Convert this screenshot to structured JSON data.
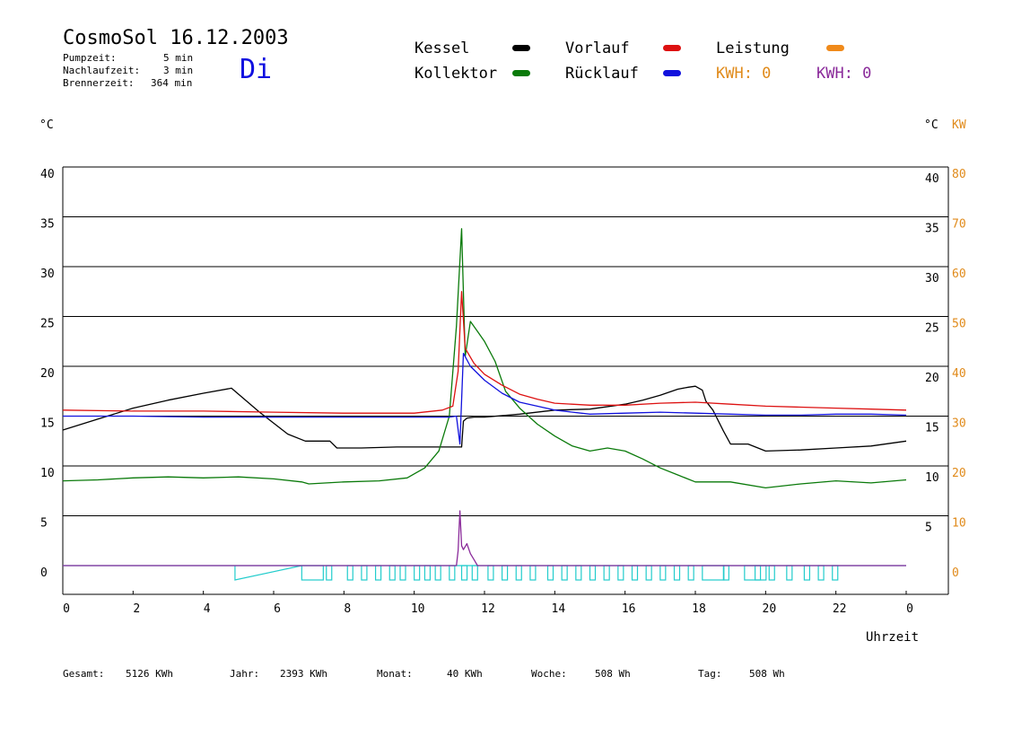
{
  "header": {
    "title": "CosmoSol 16.12.2003",
    "day": "Di",
    "pump_label": "Pumpzeit:",
    "pump_value": "5 min",
    "nachlauf_label": "Nachlaufzeit:",
    "nachlauf_value": "3 min",
    "brenner_label": "Brennerzeit:",
    "brenner_value": "364 min"
  },
  "legend": {
    "kessel": "Kessel",
    "kollektor": "Kollektor",
    "vorlauf": "Vorlauf",
    "ruecklauf": "Rücklauf",
    "leistung": "Leistung",
    "kwh1": "KWH: 0",
    "kwh2": "KWH: 0"
  },
  "axes": {
    "left_unit": "°C",
    "right_unit": "°C",
    "right_unit2": "KW",
    "xlabel": "Uhrzeit"
  },
  "footer": {
    "gesamt_label": "Gesamt:",
    "gesamt_value": "5126 KWh",
    "jahr_label": "Jahr:",
    "jahr_value": "2393 KWh",
    "monat_label": "Monat:",
    "monat_value": "40 KWh",
    "woche_label": "Woche:",
    "woche_value": "508 Wh",
    "tag_label": "Tag:",
    "tag_value": "508 Wh"
  },
  "colors": {
    "kessel": "#000000",
    "kollektor": "#0a7a0a",
    "vorlauf": "#dd1111",
    "ruecklauf": "#1111dd",
    "leistung": "#f08a1a",
    "pump": "#22cccc",
    "kwh2": "#8a2a9a"
  },
  "chart_data": {
    "type": "line",
    "xlabel": "Uhrzeit",
    "ylabel": "°C",
    "xlim": [
      0,
      24
    ],
    "ylim": [
      0,
      40
    ],
    "y2lim": [
      0,
      80
    ],
    "x_ticks": [
      "0",
      "2",
      "4",
      "6",
      "8",
      "10",
      "12",
      "14",
      "16",
      "18",
      "20",
      "22",
      "0"
    ],
    "y_ticks": [
      "0",
      "5",
      "10",
      "15",
      "20",
      "25",
      "30",
      "35",
      "40"
    ],
    "y_ticks_right": [
      "5",
      "10",
      "15",
      "20",
      "25",
      "30",
      "35",
      "40"
    ],
    "y2_ticks": [
      "0",
      "10",
      "20",
      "30",
      "40",
      "50",
      "60",
      "70",
      "80"
    ],
    "grid": true,
    "series": [
      {
        "name": "Kessel",
        "color": "#000000",
        "x": [
          0,
          1,
          2,
          3,
          4,
          4.8,
          5.6,
          6.4,
          6.9,
          7.0,
          7.6,
          7.8,
          8.5,
          9.5,
          10.5,
          11.35,
          11.4,
          11.5,
          11.7,
          12,
          13,
          14,
          15,
          16,
          16.5,
          17,
          17.5,
          17.8,
          18.0,
          18.2,
          18.3,
          18.5,
          18.8,
          19.0,
          19.5,
          20,
          21,
          22,
          23,
          24
        ],
        "y": [
          13.6,
          14.7,
          15.8,
          16.6,
          17.3,
          17.8,
          15.4,
          13.2,
          12.5,
          12.5,
          12.5,
          11.8,
          11.8,
          11.9,
          11.9,
          11.9,
          14.5,
          14.8,
          14.9,
          14.9,
          15.2,
          15.6,
          15.7,
          16.2,
          16.6,
          17.1,
          17.7,
          17.9,
          18.0,
          17.6,
          16.5,
          15.6,
          13.5,
          12.2,
          12.2,
          11.5,
          11.6,
          11.8,
          12.0,
          12.5
        ]
      },
      {
        "name": "Kollektor",
        "color": "#0a7a0a",
        "x": [
          0,
          1,
          2,
          3,
          4,
          5,
          6,
          6.8,
          7.0,
          8,
          9,
          9.8,
          10.3,
          10.7,
          11.0,
          11.2,
          11.35,
          11.45,
          11.6,
          11.8,
          12.0,
          12.3,
          12.6,
          13.0,
          13.5,
          14.0,
          14.5,
          15.0,
          15.5,
          16.0,
          16.5,
          17.0,
          17.5,
          18,
          19,
          20,
          21,
          22,
          23,
          24
        ],
        "y": [
          8.5,
          8.6,
          8.8,
          8.9,
          8.8,
          8.9,
          8.7,
          8.4,
          8.2,
          8.4,
          8.5,
          8.8,
          9.8,
          11.5,
          15.0,
          24.0,
          33.8,
          21.0,
          24.5,
          23.5,
          22.5,
          20.5,
          17.5,
          15.8,
          14.2,
          13.0,
          12.0,
          11.5,
          11.8,
          11.5,
          10.7,
          9.8,
          9.1,
          8.4,
          8.4,
          7.8,
          8.2,
          8.5,
          8.3,
          8.6
        ]
      },
      {
        "name": "Vorlauf",
        "color": "#dd1111",
        "x": [
          0,
          2,
          4,
          6,
          8,
          10,
          10.8,
          11.1,
          11.25,
          11.35,
          11.45,
          11.7,
          12,
          12.5,
          13,
          13.5,
          14,
          15,
          16,
          17,
          18,
          19,
          20,
          21,
          22,
          23,
          24
        ],
        "y": [
          15.6,
          15.5,
          15.5,
          15.4,
          15.3,
          15.3,
          15.6,
          16.0,
          19.5,
          27.5,
          21.8,
          20.3,
          19.2,
          18.1,
          17.2,
          16.7,
          16.3,
          16.1,
          16.1,
          16.3,
          16.4,
          16.2,
          16.0,
          15.9,
          15.8,
          15.7,
          15.6
        ]
      },
      {
        "name": "Rücklauf",
        "color": "#1111dd",
        "x": [
          0,
          2,
          4,
          6,
          8,
          10,
          11.0,
          11.2,
          11.3,
          11.4,
          11.6,
          12,
          12.5,
          13,
          14,
          15,
          16,
          17,
          18,
          19,
          20,
          21,
          22,
          23,
          24
        ],
        "y": [
          15.0,
          15.0,
          14.9,
          14.9,
          14.9,
          14.9,
          14.9,
          15.0,
          12.2,
          21.3,
          20.0,
          18.6,
          17.3,
          16.4,
          15.6,
          15.2,
          15.3,
          15.4,
          15.3,
          15.2,
          15.1,
          15.1,
          15.2,
          15.2,
          15.1
        ]
      },
      {
        "name": "Leistung",
        "color": "#8a2a9a",
        "x": [
          0,
          11.2,
          11.25,
          11.3,
          11.35,
          11.4,
          11.5,
          11.6,
          11.7,
          11.8,
          24
        ],
        "y": [
          0,
          0,
          1.5,
          5.5,
          2.0,
          1.6,
          2.2,
          1.2,
          0.6,
          0,
          0
        ]
      }
    ],
    "pump_marks": {
      "name": "Pumpe",
      "color": "#22cccc",
      "ramp": [
        4.9,
        6.8
      ],
      "pulses": [
        6.8,
        7.5,
        8.1,
        8.5,
        8.9,
        9.3,
        9.6,
        10.0,
        10.3,
        10.6,
        11.0,
        11.35,
        11.65,
        12.1,
        12.5,
        12.9,
        13.3,
        13.8,
        14.2,
        14.6,
        15.0,
        15.4,
        15.8,
        16.2,
        16.6,
        17.0,
        17.4,
        17.8,
        18.2,
        18.8,
        19.4,
        19.7,
        20.1,
        20.6,
        21.1,
        21.5,
        21.9
      ]
    }
  }
}
